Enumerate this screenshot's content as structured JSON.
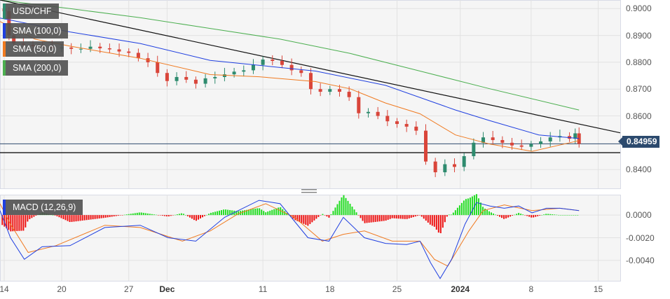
{
  "legend": {
    "symbol": "USD/CHF",
    "sma100": "SMA (100,0)",
    "sma50": "SMA (50,0)",
    "sma200": "SMA (200,0)",
    "macd": "MACD (12,26,9)"
  },
  "colors": {
    "sma100": "#1f3fe0",
    "sma50": "#f07a20",
    "sma200": "#4caf50",
    "up": "#2e8b6e",
    "down": "#d9453a",
    "macd": "#1f3fe0",
    "signal": "#f07a20",
    "hist_pos": "#22dd22",
    "hist_neg": "#ee1111",
    "trend": "#111111",
    "price_line": "#2c4a6e"
  },
  "current_price": "0.84959",
  "chart_data": [
    {
      "type": "candlestick",
      "title": "USD/CHF",
      "ylim": [
        0.833,
        0.9032
      ],
      "yticks": [
        "0.9000",
        "0.8900",
        "0.8800",
        "0.8700",
        "0.8600",
        "0.8400"
      ],
      "ytick_values": [
        0.9,
        0.89,
        0.88,
        0.87,
        0.86,
        0.84
      ],
      "xlim_days": [
        -0.44,
        64.3
      ],
      "xticks": [
        {
          "day": 0,
          "label": "14"
        },
        {
          "day": 6,
          "label": "20"
        },
        {
          "day": 13,
          "label": "27"
        },
        {
          "day": 17,
          "label": "Dec",
          "bold": true
        },
        {
          "day": 27,
          "label": "11"
        },
        {
          "day": 34,
          "label": "18"
        },
        {
          "day": 41,
          "label": "25"
        },
        {
          "day": 47.6,
          "label": "2024",
          "bold": true
        },
        {
          "day": 55,
          "label": "8"
        },
        {
          "day": 62,
          "label": "15"
        }
      ],
      "closes": [
        [
          0,
          0.899
        ],
        [
          0.5,
          0.89
        ],
        [
          1,
          0.887
        ],
        [
          2,
          0.8865
        ],
        [
          3,
          0.886
        ],
        [
          4,
          0.8858
        ],
        [
          5,
          0.8852
        ],
        [
          6,
          0.8855
        ],
        [
          7,
          0.885
        ],
        [
          8,
          0.885
        ],
        [
          9,
          0.8858
        ],
        [
          10,
          0.8852
        ],
        [
          11,
          0.8848
        ],
        [
          12,
          0.884
        ],
        [
          13,
          0.8835
        ],
        [
          14,
          0.8815
        ],
        [
          15,
          0.88
        ],
        [
          16,
          0.876
        ],
        [
          17,
          0.873
        ],
        [
          18,
          0.8745
        ],
        [
          19,
          0.8735
        ],
        [
          20,
          0.872
        ],
        [
          21,
          0.874
        ],
        [
          22,
          0.8745
        ],
        [
          23,
          0.8755
        ],
        [
          24,
          0.8765
        ],
        [
          25,
          0.877
        ],
        [
          26,
          0.879
        ],
        [
          27,
          0.881
        ],
        [
          28,
          0.8805
        ],
        [
          29,
          0.879
        ],
        [
          30,
          0.877
        ],
        [
          31,
          0.876
        ],
        [
          32,
          0.87
        ],
        [
          33,
          0.869
        ],
        [
          34,
          0.87
        ],
        [
          35,
          0.869
        ],
        [
          36,
          0.867
        ],
        [
          37,
          0.861
        ],
        [
          38,
          0.8615
        ],
        [
          39,
          0.86
        ],
        [
          40,
          0.858
        ],
        [
          41,
          0.857
        ],
        [
          42,
          0.856
        ],
        [
          43,
          0.8545
        ],
        [
          44,
          0.843
        ],
        [
          45,
          0.839
        ],
        [
          46,
          0.842
        ],
        [
          47,
          0.841
        ],
        [
          48,
          0.845
        ],
        [
          49,
          0.85
        ],
        [
          50,
          0.852
        ],
        [
          51,
          0.851
        ],
        [
          52,
          0.85
        ],
        [
          53,
          0.849
        ],
        [
          54,
          0.8485
        ],
        [
          55,
          0.8495
        ],
        [
          56,
          0.8505
        ],
        [
          57,
          0.852
        ],
        [
          58,
          0.8525
        ],
        [
          59,
          0.8515
        ],
        [
          59.6,
          0.8535
        ],
        [
          60,
          0.8496
        ]
      ],
      "sma100": [
        [
          -0.44,
          0.8965
        ],
        [
          6.87,
          0.8913
        ],
        [
          14.2,
          0.887
        ],
        [
          21.5,
          0.8807
        ],
        [
          32.5,
          0.8767
        ],
        [
          39.8,
          0.8714
        ],
        [
          47.1,
          0.8622
        ],
        [
          50.7,
          0.8582
        ],
        [
          55.8,
          0.8529
        ],
        [
          60,
          0.8516
        ]
      ],
      "sma50": [
        [
          -0.44,
          0.8952
        ],
        [
          3.2,
          0.8886
        ],
        [
          6.87,
          0.886
        ],
        [
          14.2,
          0.8815
        ],
        [
          21.5,
          0.8754
        ],
        [
          26.6,
          0.8746
        ],
        [
          32.5,
          0.8728
        ],
        [
          36.1,
          0.8701
        ],
        [
          39.8,
          0.8648
        ],
        [
          43.4,
          0.8608
        ],
        [
          47.1,
          0.8529
        ],
        [
          50.7,
          0.8495
        ],
        [
          55.1,
          0.8468
        ],
        [
          60,
          0.8508
        ]
      ],
      "sma200": [
        [
          -0.44,
          0.9032
        ],
        [
          6.87,
          0.9
        ],
        [
          14.2,
          0.8966
        ],
        [
          21.5,
          0.8926
        ],
        [
          28.8,
          0.8886
        ],
        [
          36.1,
          0.8833
        ],
        [
          43.4,
          0.8767
        ],
        [
          50.7,
          0.8701
        ],
        [
          60,
          0.8622
        ]
      ],
      "trendline": [
        [
          -0.44,
          0.9032
        ],
        [
          64.3,
          0.8537
        ]
      ],
      "support_level": 0.8463
    },
    {
      "type": "line",
      "title": "MACD (12,26,9)",
      "ylim": [
        -0.0058,
        0.0018
      ],
      "yticks": [
        "0.0000",
        "-0.0020",
        "-0.0040"
      ],
      "ytick_values": [
        0,
        -0.002,
        -0.004
      ],
      "macd": [
        [
          -0.44,
          0.0004
        ],
        [
          0.66,
          -0.002
        ],
        [
          2.1,
          -0.0039
        ],
        [
          3.95,
          -0.0028
        ],
        [
          6.87,
          -0.0027
        ],
        [
          10.5,
          -0.0011
        ],
        [
          14.2,
          -0.0009
        ],
        [
          17.1,
          -0.002
        ],
        [
          20,
          -0.0023
        ],
        [
          23,
          -0.0002
        ],
        [
          26.6,
          0.0013
        ],
        [
          28.8,
          0.001
        ],
        [
          31.7,
          -0.002
        ],
        [
          33.9,
          -0.0023
        ],
        [
          35.4,
          -0.0002
        ],
        [
          37.6,
          -0.002
        ],
        [
          39.8,
          -0.0025
        ],
        [
          42,
          -0.0026
        ],
        [
          43.4,
          -0.0023
        ],
        [
          44.5,
          -0.0042
        ],
        [
          45.5,
          -0.0056
        ],
        [
          46.7,
          -0.0039
        ],
        [
          48.1,
          -0.0008
        ],
        [
          49.3,
          0.0011
        ],
        [
          50.7,
          0.0008
        ],
        [
          52.2,
          0.0006
        ],
        [
          53.7,
          0.0008
        ],
        [
          55.1,
          0.0002
        ],
        [
          56.6,
          0.0006
        ],
        [
          58,
          0.0006
        ],
        [
          60,
          0.0004
        ]
      ],
      "signal": [
        [
          -0.44,
          0.001
        ],
        [
          0.66,
          -0.0008
        ],
        [
          2.5,
          -0.0033
        ],
        [
          5.4,
          -0.0027
        ],
        [
          10.5,
          -0.0009
        ],
        [
          14.2,
          -0.0011
        ],
        [
          18.6,
          -0.0023
        ],
        [
          21.5,
          -0.0014
        ],
        [
          24.4,
          0.0001
        ],
        [
          27.3,
          0.001
        ],
        [
          30.3,
          -0.0002
        ],
        [
          33.2,
          -0.0023
        ],
        [
          35.4,
          -0.0017
        ],
        [
          37.6,
          -0.0014
        ],
        [
          40.5,
          -0.0023
        ],
        [
          43.4,
          -0.0023
        ],
        [
          44.9,
          -0.0039
        ],
        [
          46.3,
          -0.0045
        ],
        [
          48.5,
          -0.0014
        ],
        [
          50,
          0.0004
        ],
        [
          52.2,
          0.0009
        ],
        [
          55.1,
          0.0004
        ],
        [
          58,
          0.0006
        ],
        [
          60,
          0.0004
        ]
      ]
    }
  ]
}
